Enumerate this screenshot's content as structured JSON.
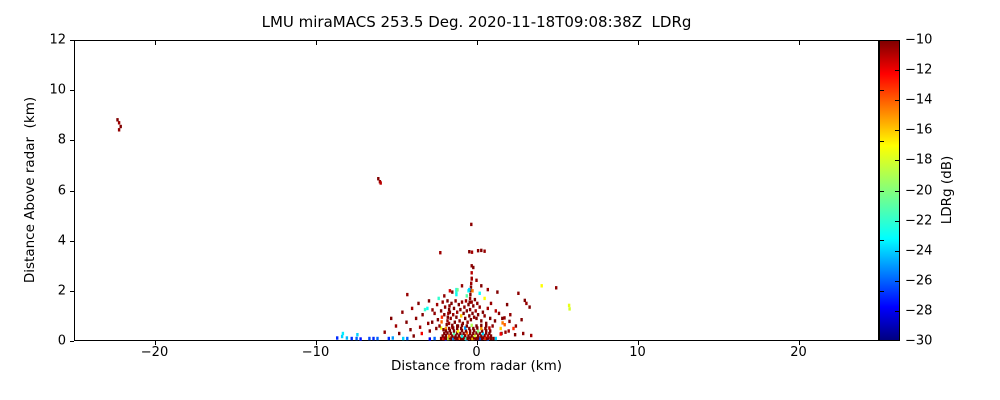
{
  "title": "LMU miraMACS 253.5 Deg. 2020-11-18T09:08:38Z  LDRg",
  "chart_data": {
    "type": "scatter",
    "title": "LMU miraMACS 253.5 Deg. 2020-11-18T09:08:38Z  LDRg",
    "xlabel": "Distance from radar (km)",
    "ylabel": "Distance Above radar  (km)",
    "xlim": [
      -25,
      25
    ],
    "ylim": [
      0,
      12
    ],
    "grid": false,
    "x_ticks": [
      -20,
      -10,
      0,
      10,
      20
    ],
    "x_tick_labels": [
      "−20",
      "−10",
      "0",
      "10",
      "20"
    ],
    "y_ticks": [
      0,
      2,
      4,
      6,
      8,
      10,
      12
    ],
    "y_tick_labels": [
      "0",
      "2",
      "4",
      "6",
      "8",
      "10",
      "12"
    ],
    "colorbar": {
      "label": "LDRg (dB)",
      "vmin": -30,
      "vmax": -10,
      "ticks": [
        -10,
        -12,
        -14,
        -16,
        -18,
        -20,
        -22,
        -24,
        -26,
        -28,
        -30
      ],
      "tick_labels": [
        "−10",
        "−12",
        "−14",
        "−16",
        "−18",
        "−20",
        "−22",
        "−24",
        "−26",
        "−28",
        "−30"
      ],
      "minor_ticks": [
        -13.3,
        -16.7,
        -20,
        -23.3,
        -26.7
      ],
      "colormap_stops": [
        [
          0,
          "#000080"
        ],
        [
          0.11,
          "#0000ff"
        ],
        [
          0.34,
          "#00ffff"
        ],
        [
          0.65,
          "#ffff00"
        ],
        [
          0.89,
          "#ff0000"
        ],
        [
          1,
          "#800000"
        ]
      ]
    },
    "points": [
      [
        -22.3,
        8.82,
        -10
      ],
      [
        -22.2,
        8.7,
        -10.5
      ],
      [
        -22.1,
        8.55,
        -10
      ],
      [
        -22.2,
        8.42,
        -10.3
      ],
      [
        -6.1,
        6.47,
        -10
      ],
      [
        -6.0,
        6.35,
        -10.4
      ],
      [
        -5.95,
        6.3,
        -11
      ],
      [
        -0.32,
        4.65,
        -10.2
      ],
      [
        -2.25,
        3.52,
        -10.5
      ],
      [
        -0.45,
        3.56,
        -10
      ],
      [
        -0.28,
        3.54,
        -10.6
      ],
      [
        0.1,
        3.6,
        -10.2
      ],
      [
        0.3,
        3.61,
        -10
      ],
      [
        0.5,
        3.58,
        -10.4
      ],
      [
        -0.3,
        3.0,
        -10.2
      ],
      [
        -0.2,
        2.93,
        -10
      ],
      [
        -0.3,
        2.72,
        -11
      ],
      [
        -0.3,
        2.47,
        -10.5
      ],
      [
        0.0,
        2.42,
        -10.3
      ],
      [
        4.05,
        2.2,
        -17
      ],
      [
        4.95,
        2.12,
        -10.3
      ],
      [
        5.75,
        1.42,
        -17.5
      ],
      [
        5.78,
        1.28,
        -18
      ],
      [
        3.0,
        1.62,
        -10
      ],
      [
        3.1,
        1.5,
        -10.4
      ],
      [
        3.3,
        1.35,
        -10
      ],
      [
        2.6,
        1.9,
        -10.2
      ],
      [
        2.8,
        0.85,
        -10
      ],
      [
        2.3,
        0.5,
        -13
      ],
      [
        2.0,
        0.4,
        -10.5
      ],
      [
        1.75,
        0.65,
        -14
      ],
      [
        1.55,
        0.3,
        -10
      ],
      [
        2.9,
        0.3,
        -10.2
      ],
      [
        3.4,
        0.22,
        -10.6
      ],
      [
        1.74,
        0.92,
        -10.3
      ],
      [
        1.62,
        0.72,
        -14.5
      ],
      [
        2.05,
        0.78,
        -10
      ],
      [
        1.5,
        0.28,
        -12
      ],
      [
        2.45,
        0.6,
        -10.2
      ],
      [
        1.4,
        1.1,
        -10.2
      ],
      [
        1.6,
        0.9,
        -10
      ],
      [
        1.8,
        0.35,
        -10.4
      ],
      [
        1.5,
        0.5,
        -16
      ],
      [
        1.9,
        1.45,
        -10
      ],
      [
        2.1,
        1.05,
        -10.3
      ],
      [
        2.4,
        0.25,
        -10
      ],
      [
        -8.65,
        0.12,
        -27
      ],
      [
        -8.35,
        0.18,
        -24
      ],
      [
        -8.05,
        0.12,
        -24.5
      ],
      [
        -7.75,
        0.1,
        -27
      ],
      [
        -7.45,
        0.1,
        -26
      ],
      [
        -7.2,
        0.08,
        -27.5
      ],
      [
        -6.65,
        0.1,
        -26.5
      ],
      [
        -6.4,
        0.1,
        -27
      ],
      [
        -6.15,
        0.1,
        -26
      ],
      [
        -5.45,
        0.1,
        -27
      ],
      [
        -5.2,
        0.12,
        -25
      ],
      [
        -4.55,
        0.1,
        -24
      ],
      [
        -4.3,
        0.1,
        -26
      ],
      [
        -8.3,
        0.3,
        -23.5
      ],
      [
        -7.4,
        0.25,
        -24
      ],
      [
        -5.7,
        0.35,
        -10.3
      ],
      [
        -5.3,
        0.9,
        -10
      ],
      [
        -5.0,
        0.6,
        -10.5
      ],
      [
        -4.8,
        0.3,
        -10
      ],
      [
        -4.6,
        1.15,
        -10.2
      ],
      [
        -4.35,
        0.75,
        -10
      ],
      [
        -4.3,
        1.85,
        -10.4
      ],
      [
        -4.1,
        0.45,
        -10
      ],
      [
        -4.0,
        1.3,
        -10.6
      ],
      [
        -3.9,
        0.2,
        -10
      ],
      [
        -3.75,
        0.9,
        -10.2
      ],
      [
        -3.6,
        1.5,
        -10
      ],
      [
        -3.5,
        0.55,
        -10.5
      ],
      [
        -3.4,
        0.3,
        -12
      ],
      [
        -3.35,
        1.05,
        -10
      ],
      [
        -3.2,
        1.25,
        -22
      ],
      [
        -3.05,
        1.3,
        -23
      ],
      [
        -3.0,
        0.7,
        -10.3
      ],
      [
        -2.95,
        1.6,
        -10
      ],
      [
        -2.9,
        0.4,
        -10
      ],
      [
        -2.73,
        1.24,
        -10.2
      ],
      [
        -2.17,
        0.76,
        -14
      ],
      [
        -2.2,
        0.52,
        -17.5
      ],
      [
        -1.85,
        0.65,
        -10
      ],
      [
        -1.8,
        0.8,
        -10.3
      ],
      [
        -1.78,
        0.95,
        -10
      ],
      [
        -1.75,
        1.1,
        -10.5
      ],
      [
        -1.7,
        1.25,
        -10
      ],
      [
        -1.68,
        1.4,
        -10.2
      ],
      [
        -1.25,
        1.85,
        -23
      ],
      [
        -1.25,
        1.95,
        -22.5
      ],
      [
        -1.24,
        2.05,
        -23.5
      ],
      [
        -1.18,
        2.04,
        -20.5
      ],
      [
        -1.65,
        2.0,
        -11.5
      ],
      [
        -0.42,
        1.55,
        -10
      ],
      [
        -0.4,
        1.7,
        -10.4
      ],
      [
        -0.38,
        1.85,
        -10
      ],
      [
        -0.36,
        2.0,
        -10.2
      ],
      [
        -0.34,
        2.15,
        -10
      ],
      [
        -0.33,
        2.3,
        -10.5
      ],
      [
        -0.5,
        2.0,
        -23
      ],
      [
        -0.45,
        2.05,
        -24
      ],
      [
        -0.25,
        2.0,
        -14.5
      ],
      [
        -0.9,
        2.2,
        -10.3
      ],
      [
        -0.3,
        2.5,
        -10.5
      ],
      [
        0.3,
        2.2,
        -10
      ],
      [
        0.7,
        2.05,
        -10.4
      ],
      [
        1.3,
        1.95,
        -10
      ],
      [
        -2.75,
        0.75,
        -10
      ],
      [
        -2.6,
        1.1,
        -10.3
      ],
      [
        -2.5,
        0.5,
        -10
      ],
      [
        -2.45,
        1.45,
        -10.6
      ],
      [
        -2.4,
        0.85,
        -10
      ],
      [
        -2.35,
        1.7,
        -22
      ],
      [
        -2.3,
        0.6,
        -10.2
      ],
      [
        -2.2,
        1.2,
        -10
      ],
      [
        -2.15,
        0.95,
        -13
      ],
      [
        -2.1,
        1.55,
        -10.4
      ],
      [
        -2.05,
        0.45,
        -10
      ],
      [
        -2.0,
        1.05,
        -10
      ],
      [
        -1.95,
        1.35,
        -10.2
      ],
      [
        -1.9,
        0.5,
        -15
      ],
      [
        -1.8,
        1.6,
        -10
      ],
      [
        -1.7,
        0.7,
        -10.5
      ],
      [
        -1.65,
        1.15,
        -10
      ],
      [
        -1.6,
        0.9,
        -10.2
      ],
      [
        -1.55,
        1.5,
        -10
      ],
      [
        -1.5,
        0.55,
        -11
      ],
      [
        -1.45,
        1.05,
        -10.4
      ],
      [
        -1.4,
        1.3,
        -10
      ],
      [
        -1.35,
        0.75,
        -10
      ],
      [
        -1.3,
        1.6,
        -10.3
      ],
      [
        -1.25,
        0.95,
        -10
      ],
      [
        -1.2,
        1.15,
        -10.5
      ],
      [
        -1.15,
        0.6,
        -10
      ],
      [
        -1.1,
        1.45,
        -10
      ],
      [
        -1.05,
        0.8,
        -10.2
      ],
      [
        -1.0,
        1.25,
        -10
      ],
      [
        -0.95,
        1.0,
        -16
      ],
      [
        -0.9,
        1.55,
        -10.4
      ],
      [
        -0.85,
        0.7,
        -10
      ],
      [
        -0.8,
        1.1,
        -10
      ],
      [
        -0.75,
        1.35,
        -10.2
      ],
      [
        -0.7,
        0.9,
        -10
      ],
      [
        -0.65,
        1.6,
        -10.6
      ],
      [
        -0.6,
        1.2,
        -10
      ],
      [
        -0.55,
        0.75,
        -10.3
      ],
      [
        -0.5,
        1.45,
        -10
      ],
      [
        -0.45,
        1.0,
        -10
      ],
      [
        -0.4,
        1.25,
        -10.2
      ],
      [
        -0.35,
        0.85,
        -10
      ],
      [
        -0.3,
        1.55,
        -10.4
      ],
      [
        -0.25,
        1.1,
        -10
      ],
      [
        -0.2,
        1.4,
        -10
      ],
      [
        -0.15,
        0.95,
        -10.2
      ],
      [
        -0.1,
        1.65,
        -10
      ],
      [
        -0.05,
        1.2,
        -10.5
      ],
      [
        0.0,
        0.9,
        -10
      ],
      [
        0.05,
        1.5,
        -10.2
      ],
      [
        0.1,
        1.05,
        -10
      ],
      [
        0.2,
        1.35,
        -10.4
      ],
      [
        0.3,
        0.8,
        -10
      ],
      [
        0.4,
        1.15,
        -10
      ],
      [
        0.5,
        1.0,
        -10.3
      ],
      [
        0.6,
        0.7,
        -10
      ],
      [
        0.7,
        1.3,
        -10.6
      ],
      [
        0.85,
        0.9,
        -10
      ],
      [
        1.0,
        0.6,
        -10.2
      ],
      [
        1.15,
        0.8,
        -10
      ],
      [
        -0.6,
        1.8,
        -21
      ],
      [
        0.2,
        1.9,
        -23
      ],
      [
        0.5,
        1.7,
        -17
      ],
      [
        -2.0,
        1.8,
        -10.3
      ],
      [
        -1.5,
        1.95,
        -10
      ],
      [
        0.9,
        1.5,
        -10.4
      ],
      [
        1.2,
        1.2,
        -11
      ],
      [
        -2.9,
        0.08,
        -28
      ],
      [
        -2.6,
        0.1,
        -26
      ],
      [
        -1.9,
        0.08,
        -27
      ],
      [
        -1.2,
        0.1,
        -28
      ],
      [
        -0.6,
        0.08,
        -25
      ],
      [
        0.1,
        0.1,
        -27
      ],
      [
        0.7,
        0.08,
        -26
      ],
      [
        1.2,
        0.1,
        -24
      ],
      [
        -2.2,
        0.1,
        -10
      ],
      [
        -2.05,
        0.1,
        -12
      ],
      [
        -1.95,
        0.12,
        -10
      ],
      [
        -1.85,
        0.1,
        -10
      ],
      [
        -1.75,
        0.1,
        -19
      ],
      [
        -1.65,
        0.12,
        -10
      ],
      [
        -1.55,
        0.1,
        -10
      ],
      [
        -1.45,
        0.1,
        -25
      ],
      [
        -1.35,
        0.12,
        -10
      ],
      [
        -1.25,
        0.1,
        -10
      ],
      [
        -1.15,
        0.1,
        -10
      ],
      [
        -1.05,
        0.12,
        -14
      ],
      [
        -0.95,
        0.1,
        -10
      ],
      [
        -0.85,
        0.1,
        -10
      ],
      [
        -0.75,
        0.12,
        -10
      ],
      [
        -0.65,
        0.1,
        -22
      ],
      [
        -0.55,
        0.1,
        -10
      ],
      [
        -0.45,
        0.12,
        -10
      ],
      [
        -0.35,
        0.1,
        -10
      ],
      [
        -0.25,
        0.1,
        -16
      ],
      [
        -0.15,
        0.12,
        -10
      ],
      [
        -0.05,
        0.1,
        -10
      ],
      [
        0.05,
        0.1,
        -10
      ],
      [
        0.15,
        0.12,
        -10
      ],
      [
        0.25,
        0.1,
        -26
      ],
      [
        0.35,
        0.1,
        -10
      ],
      [
        0.45,
        0.12,
        -10
      ],
      [
        0.55,
        0.1,
        -13
      ],
      [
        0.65,
        0.1,
        -10
      ],
      [
        0.75,
        0.12,
        -10
      ],
      [
        0.9,
        0.1,
        -10
      ],
      [
        1.05,
        0.1,
        -10
      ],
      [
        -2.1,
        0.2,
        -10
      ],
      [
        -1.9,
        0.22,
        -10
      ],
      [
        -1.7,
        0.2,
        -15
      ],
      [
        -1.5,
        0.2,
        -10
      ],
      [
        -1.3,
        0.22,
        -10
      ],
      [
        -1.1,
        0.2,
        -10
      ],
      [
        -0.9,
        0.2,
        -23
      ],
      [
        -0.7,
        0.22,
        -10
      ],
      [
        -0.5,
        0.2,
        -10
      ],
      [
        -0.3,
        0.2,
        -10
      ],
      [
        -0.1,
        0.22,
        -18
      ],
      [
        0.1,
        0.2,
        -10
      ],
      [
        0.3,
        0.2,
        -10
      ],
      [
        0.5,
        0.22,
        -10
      ],
      [
        0.7,
        0.2,
        -11
      ],
      [
        0.9,
        0.2,
        -10
      ],
      [
        -2.0,
        0.3,
        -10
      ],
      [
        -1.8,
        0.32,
        -10
      ],
      [
        -1.6,
        0.3,
        -10
      ],
      [
        -1.4,
        0.3,
        -21
      ],
      [
        -1.2,
        0.32,
        -10
      ],
      [
        -1.0,
        0.3,
        -10
      ],
      [
        -0.8,
        0.3,
        -10
      ],
      [
        -0.6,
        0.32,
        -14
      ],
      [
        -0.4,
        0.3,
        -10
      ],
      [
        -0.2,
        0.3,
        -10
      ],
      [
        0.0,
        0.32,
        -10
      ],
      [
        0.2,
        0.3,
        -10
      ],
      [
        0.4,
        0.3,
        -24
      ],
      [
        0.6,
        0.32,
        -10
      ],
      [
        0.8,
        0.3,
        -10
      ],
      [
        -1.9,
        0.4,
        -10
      ],
      [
        -1.65,
        0.42,
        -10
      ],
      [
        -1.4,
        0.4,
        -10
      ],
      [
        -1.15,
        0.4,
        -17
      ],
      [
        -0.9,
        0.42,
        -10
      ],
      [
        -0.65,
        0.4,
        -10
      ],
      [
        -0.4,
        0.4,
        -10
      ],
      [
        -0.15,
        0.42,
        -10
      ],
      [
        0.1,
        0.4,
        -20
      ],
      [
        0.35,
        0.4,
        -10
      ],
      [
        0.6,
        0.42,
        -10
      ],
      [
        0.85,
        0.4,
        -10
      ],
      [
        -1.7,
        0.5,
        -10
      ],
      [
        -1.45,
        0.52,
        -10
      ],
      [
        -1.2,
        0.5,
        -10
      ],
      [
        -0.95,
        0.5,
        -10
      ],
      [
        -0.7,
        0.52,
        -25
      ],
      [
        -0.45,
        0.5,
        -10
      ],
      [
        -0.2,
        0.5,
        -10
      ],
      [
        0.05,
        0.52,
        -10
      ],
      [
        0.3,
        0.5,
        -15
      ],
      [
        0.55,
        0.5,
        -10
      ],
      [
        0.8,
        0.52,
        -11
      ],
      [
        -1.5,
        0.62,
        -10
      ],
      [
        -1.2,
        0.6,
        -10
      ],
      [
        -0.9,
        0.62,
        -10
      ],
      [
        -0.6,
        0.6,
        -10
      ],
      [
        -0.3,
        0.62,
        -19
      ],
      [
        0.0,
        0.6,
        -10
      ],
      [
        0.3,
        0.62,
        -10
      ],
      [
        0.6,
        0.6,
        -10
      ]
    ]
  }
}
